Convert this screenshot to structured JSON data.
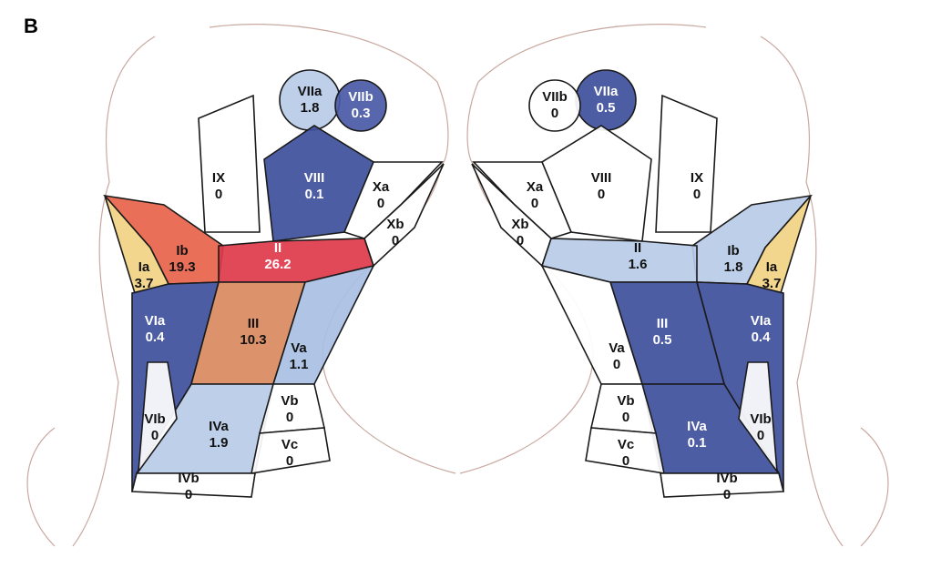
{
  "panel_label": "B",
  "left": {
    "regions": [
      {
        "name": "VIIa",
        "value": 1.8,
        "color": "#b9cbe8"
      },
      {
        "name": "VIIb",
        "value": 0.3,
        "color": "#4a5aa6"
      },
      {
        "name": "VIII",
        "value": 0.1,
        "color": "#3e4f9b"
      },
      {
        "name": "IX",
        "value": 0,
        "color": "#ffffff"
      },
      {
        "name": "Xa",
        "value": 0,
        "color": "#ffffff"
      },
      {
        "name": "Xb",
        "value": 0,
        "color": "#ffffff"
      },
      {
        "name": "Ib",
        "value": 19.3,
        "color": "#e8634b"
      },
      {
        "name": "Ia",
        "value": 3.7,
        "color": "#f2d383"
      },
      {
        "name": "II",
        "value": 26.2,
        "color": "#e03a4a"
      },
      {
        "name": "VIa",
        "value": 0.4,
        "color": "#3e4f9b"
      },
      {
        "name": "III",
        "value": 10.3,
        "color": "#d98a60"
      },
      {
        "name": "Va",
        "value": 1.1,
        "color": "#a9bfe4"
      },
      {
        "name": "IVa",
        "value": 1.9,
        "color": "#b9cbe8"
      },
      {
        "name": "Vb",
        "value": 0,
        "color": "#ffffff"
      },
      {
        "name": "Vc",
        "value": 0,
        "color": "#ffffff"
      },
      {
        "name": "VIb",
        "value": 0,
        "color": "#ffffff"
      },
      {
        "name": "IVb",
        "value": 0,
        "color": "#ffffff"
      }
    ]
  },
  "right": {
    "regions": [
      {
        "name": "VIIa",
        "value": 0.5,
        "color": "#3e4f9b"
      },
      {
        "name": "VIIb",
        "value": 0,
        "color": "#ffffff"
      },
      {
        "name": "VIII",
        "value": 0,
        "color": "#ffffff"
      },
      {
        "name": "IX",
        "value": 0,
        "color": "#ffffff"
      },
      {
        "name": "Xa",
        "value": 0,
        "color": "#ffffff"
      },
      {
        "name": "Xb",
        "value": 0,
        "color": "#ffffff"
      },
      {
        "name": "Ib",
        "value": 1.8,
        "color": "#b9cbe8"
      },
      {
        "name": "Ia",
        "value": 3.7,
        "color": "#f2d383"
      },
      {
        "name": "II",
        "value": 1.6,
        "color": "#b9cbe8"
      },
      {
        "name": "VIa",
        "value": 0.4,
        "color": "#3e4f9b"
      },
      {
        "name": "III",
        "value": 0.5,
        "color": "#3e4f9b"
      },
      {
        "name": "Va",
        "value": 0,
        "color": "#ffffff"
      },
      {
        "name": "IVa",
        "value": 0.1,
        "color": "#3e4f9b"
      },
      {
        "name": "Vb",
        "value": 0,
        "color": "#ffffff"
      },
      {
        "name": "Vc",
        "value": 0,
        "color": "#ffffff"
      },
      {
        "name": "VIb",
        "value": 0,
        "color": "#ffffff"
      },
      {
        "name": "IVb",
        "value": 0,
        "color": "#ffffff"
      }
    ]
  }
}
